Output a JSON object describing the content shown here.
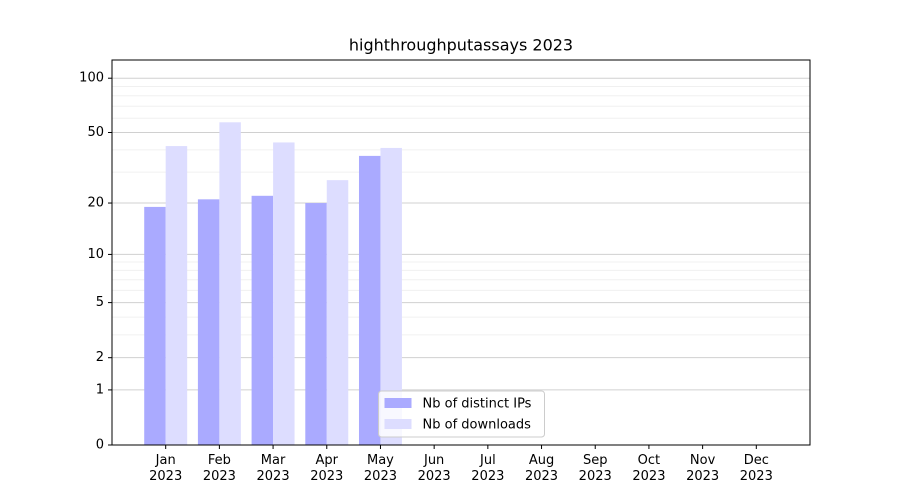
{
  "chart_data": {
    "type": "bar",
    "title": "highthroughputassays 2023",
    "categories": [
      "Jan 2023",
      "Feb 2023",
      "Mar 2023",
      "Apr 2023",
      "May 2023",
      "Jun 2023",
      "Jul 2023",
      "Aug 2023",
      "Sep 2023",
      "Oct 2023",
      "Nov 2023",
      "Dec 2023"
    ],
    "series": [
      {
        "name": "Nb of distinct IPs",
        "color": "#aaaaff",
        "values": [
          19,
          21,
          22,
          20,
          37,
          null,
          null,
          null,
          null,
          null,
          null,
          null
        ]
      },
      {
        "name": "Nb of downloads",
        "color": "#ddddff",
        "values": [
          42,
          57,
          44,
          27,
          41,
          null,
          null,
          null,
          null,
          null,
          null,
          null
        ]
      }
    ],
    "yscale": "log1p",
    "ylim": [
      0,
      126
    ],
    "yticks": [
      0,
      1,
      2,
      5,
      10,
      20,
      50,
      100
    ],
    "minor_yticks": [
      3,
      4,
      6,
      7,
      8,
      9,
      30,
      40,
      60,
      70,
      80,
      90
    ],
    "grid": true,
    "legend": "lower center"
  }
}
